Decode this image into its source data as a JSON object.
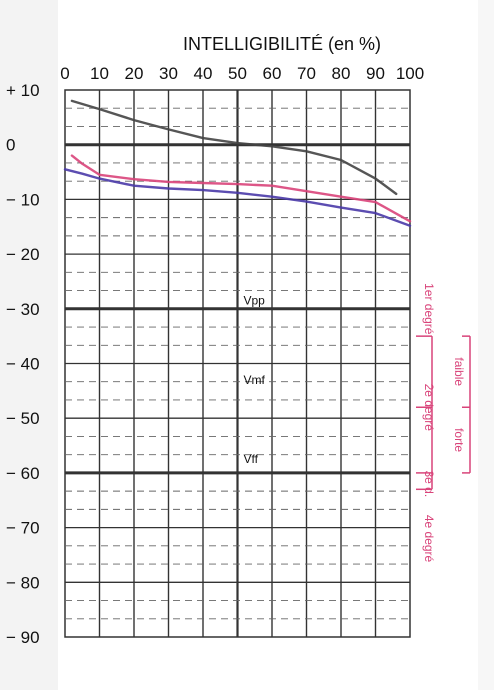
{
  "chart_data": {
    "type": "line",
    "title": "INTELLIGIBILITÉ (en %)",
    "x_ticks": [
      "0",
      "10",
      "20",
      "30",
      "40",
      "50",
      "60",
      "70",
      "80",
      "90",
      "100"
    ],
    "y_ticks": [
      "+ 10",
      "0",
      "− 10",
      "− 20",
      "− 30",
      "− 40",
      "− 50",
      "− 60",
      "− 70",
      "− 80",
      "− 90"
    ],
    "xlim": [
      0,
      100
    ],
    "ylim": [
      -90,
      10
    ],
    "grid": true,
    "zone_labels": [
      "Vpp",
      "Vmf",
      "Vff"
    ],
    "zone_label_values": [
      -28.5,
      -43,
      -57.5
    ],
    "side_labels": [
      "1er degré",
      "2e degré",
      "3e d.",
      "4e degré"
    ],
    "bracket_labels": [
      "faible",
      "forte"
    ],
    "series": [
      {
        "color": "#444444",
        "x": [
          2,
          10,
          20,
          30,
          40,
          50,
          60,
          70,
          80,
          85,
          90,
          96
        ],
        "y": [
          8,
          6.5,
          4.5,
          2.8,
          1.2,
          0.3,
          -0.3,
          -1.2,
          -2.8,
          -4.5,
          -6.2,
          -9
        ]
      },
      {
        "color": "#d9447a",
        "x": [
          2,
          5,
          10,
          20,
          30,
          40,
          50,
          60,
          70,
          80,
          90,
          100
        ],
        "y": [
          -2,
          -3.5,
          -5.5,
          -6.3,
          -6.8,
          -7,
          -7.2,
          -7.5,
          -8.5,
          -9.5,
          -10.5,
          -14
        ]
      },
      {
        "color": "#4a3aa8",
        "x": [
          0,
          5,
          10,
          20,
          30,
          40,
          50,
          60,
          70,
          80,
          90,
          100
        ],
        "y": [
          -4.5,
          -5.3,
          -6.2,
          -7.5,
          -8,
          -8.3,
          -8.8,
          -9.5,
          -10.4,
          -11.5,
          -12.5,
          -14.8
        ]
      }
    ]
  }
}
